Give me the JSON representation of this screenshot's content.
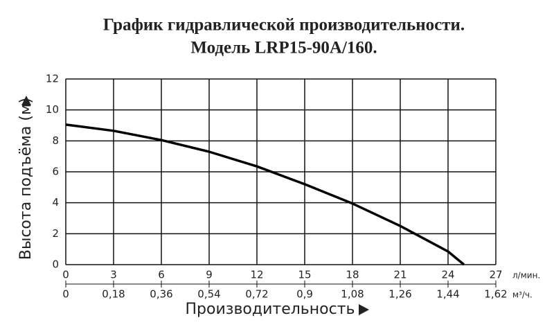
{
  "chart_data": {
    "type": "line",
    "title": "График гидравлической производительности.",
    "subtitle": "Модель LRP15-90A/160.",
    "y_label": "Высота подъёма (м)",
    "x_label": "Производительность",
    "x_unit": "л/мин.",
    "x2_unit": "м³/ч.",
    "x": [
      0,
      3,
      6,
      9,
      12,
      15,
      18,
      21,
      24,
      25
    ],
    "values": [
      9.05,
      8.65,
      8.05,
      7.3,
      6.35,
      5.2,
      3.95,
      2.5,
      0.85,
      0
    ],
    "color": "#000000",
    "xlim": [
      0,
      27
    ],
    "xticks": [
      0,
      3,
      6,
      9,
      12,
      15,
      18,
      21,
      24,
      27
    ],
    "x2lim": [
      0,
      1.62
    ],
    "x2ticks": [
      0,
      {
        "value": 0.18,
        "label": "0,18"
      },
      {
        "value": 0.36,
        "label": "0,36"
      },
      {
        "value": 0.54,
        "label": "0,54"
      },
      {
        "value": 0.72,
        "label": "0,72"
      },
      {
        "value": 0.9,
        "label": "0,9"
      },
      {
        "value": 1.08,
        "label": "1,08"
      },
      {
        "value": 1.26,
        "label": "1,26"
      },
      {
        "value": 1.44,
        "label": "1,44"
      },
      {
        "value": 1.62,
        "label": "1,62"
      }
    ],
    "ylim": [
      0,
      12
    ],
    "yticks": [
      0,
      2,
      4,
      6,
      8,
      10,
      12
    ],
    "grid": true
  }
}
